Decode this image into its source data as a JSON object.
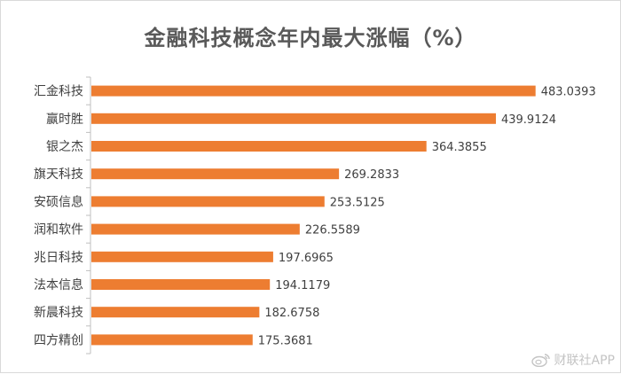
{
  "chart_data": {
    "type": "bar",
    "orientation": "horizontal",
    "title": "金融科技概念年内最大涨幅（%）",
    "categories": [
      "汇金科技",
      "赢时胜",
      "银之杰",
      "旗天科技",
      "安硕信息",
      "润和软件",
      "兆日科技",
      "法本信息",
      "新晨科技",
      "四方精创"
    ],
    "values": [
      483.0393,
      439.9124,
      364.3855,
      269.2833,
      253.5125,
      226.5589,
      197.6965,
      194.1179,
      182.6758,
      175.3681
    ],
    "value_labels": [
      "483.0393",
      "439.9124",
      "364.3855",
      "269.2833",
      "253.5125",
      "226.5589",
      "197.6965",
      "194.1179",
      "182.6758",
      "175.3681"
    ],
    "xlim": [
      0,
      520
    ],
    "grid": false,
    "bar_color": "#ED7D31",
    "label_color": "#404040"
  },
  "watermark": {
    "text": "财联社APP",
    "icon": "weibo-icon"
  }
}
